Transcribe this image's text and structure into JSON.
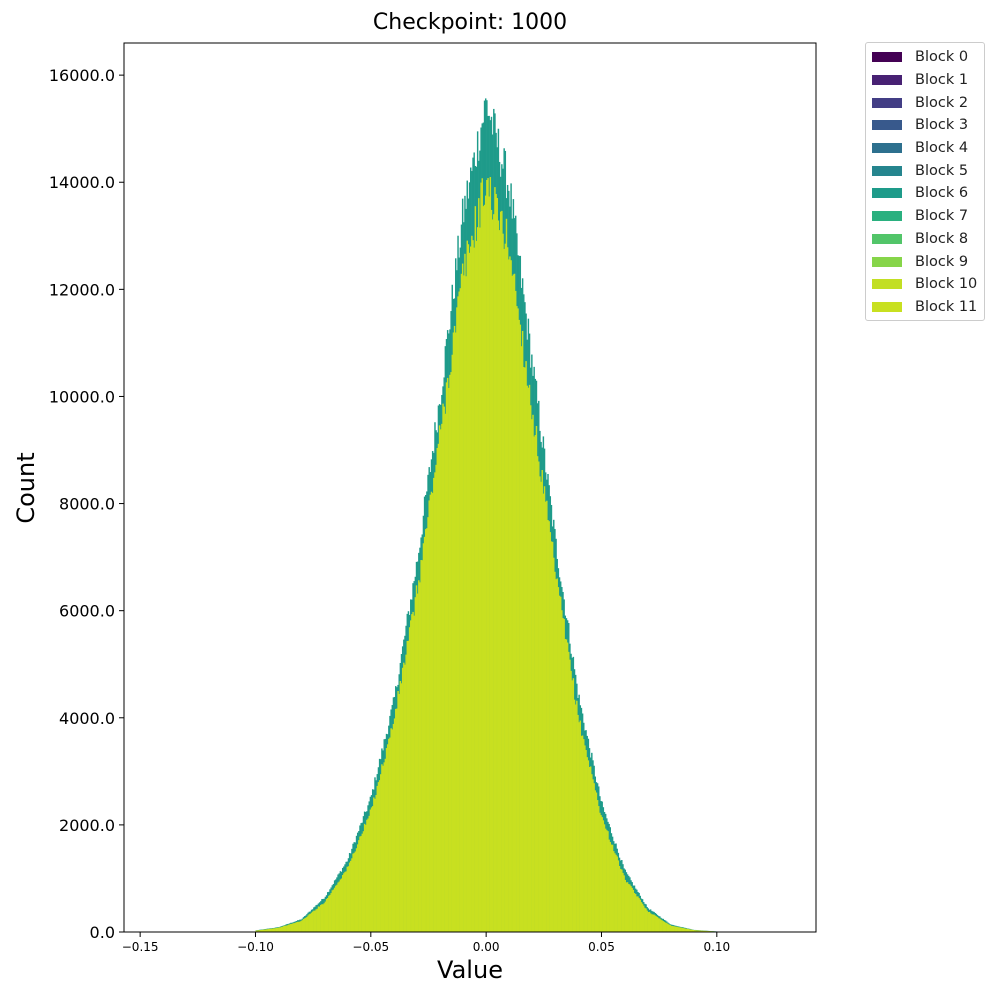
{
  "chart_data": {
    "type": "bar",
    "subtype": "stacked-histogram",
    "title": "Checkpoint: 1000",
    "xlabel": "Value",
    "ylabel": "Count",
    "xlim": [
      -0.157,
      0.143
    ],
    "ylim": [
      0,
      16600
    ],
    "x_ticks": [
      -0.15,
      -0.1,
      -0.05,
      0.0,
      0.05,
      0.1
    ],
    "x_tick_labels": [
      "−0.15",
      "−0.10",
      "−0.05",
      "0.00",
      "0.05",
      "0.10"
    ],
    "y_ticks": [
      0,
      2000,
      4000,
      6000,
      8000,
      10000,
      12000,
      14000,
      16000
    ],
    "y_tick_labels": [
      "0.0",
      "2000.0",
      "4000.0",
      "6000.0",
      "8000.0",
      "10000.0",
      "12000.0",
      "14000.0",
      "16000.0"
    ],
    "grid": false,
    "legend_position": "outside-upper-right",
    "series": [
      {
        "name": "Block 0",
        "color": "#440154"
      },
      {
        "name": "Block 1",
        "color": "#482173"
      },
      {
        "name": "Block 2",
        "color": "#433e85"
      },
      {
        "name": "Block 3",
        "color": "#38598c"
      },
      {
        "name": "Block 4",
        "color": "#2d708e"
      },
      {
        "name": "Block 5",
        "color": "#25858e"
      },
      {
        "name": "Block 6",
        "color": "#1e9b8a"
      },
      {
        "name": "Block 7",
        "color": "#2ab07f"
      },
      {
        "name": "Block 8",
        "color": "#52c569"
      },
      {
        "name": "Block 9",
        "color": "#86d549"
      },
      {
        "name": "Block 10",
        "color": "#c2df23"
      },
      {
        "name": "Block 11",
        "color": "#c8e020"
      }
    ],
    "visible_envelopes": [
      {
        "series": "Block 6",
        "color": "#1e9b8a",
        "x": [
          -0.1,
          -0.09,
          -0.08,
          -0.07,
          -0.06,
          -0.05,
          -0.04,
          -0.03,
          -0.02,
          -0.01,
          0.0,
          0.01,
          0.02,
          0.03,
          0.04,
          0.05,
          0.06,
          0.07,
          0.08,
          0.09,
          0.1
        ],
        "y": [
          30,
          90,
          240,
          650,
          1350,
          2500,
          4300,
          6900,
          10000,
          13400,
          15500,
          13900,
          10600,
          7300,
          4400,
          2400,
          1150,
          450,
          140,
          40,
          10
        ]
      },
      {
        "series": "Block 11",
        "color": "#c8e020",
        "x": [
          -0.1,
          -0.09,
          -0.08,
          -0.07,
          -0.06,
          -0.05,
          -0.04,
          -0.03,
          -0.02,
          -0.01,
          0.0,
          0.01,
          0.02,
          0.03,
          0.04,
          0.05,
          0.06,
          0.07,
          0.08,
          0.09,
          0.1
        ],
        "y": [
          25,
          80,
          210,
          560,
          1200,
          2250,
          3950,
          6350,
          9300,
          12300,
          14000,
          12800,
          9700,
          6700,
          4000,
          2150,
          1000,
          390,
          120,
          35,
          8
        ]
      }
    ]
  }
}
